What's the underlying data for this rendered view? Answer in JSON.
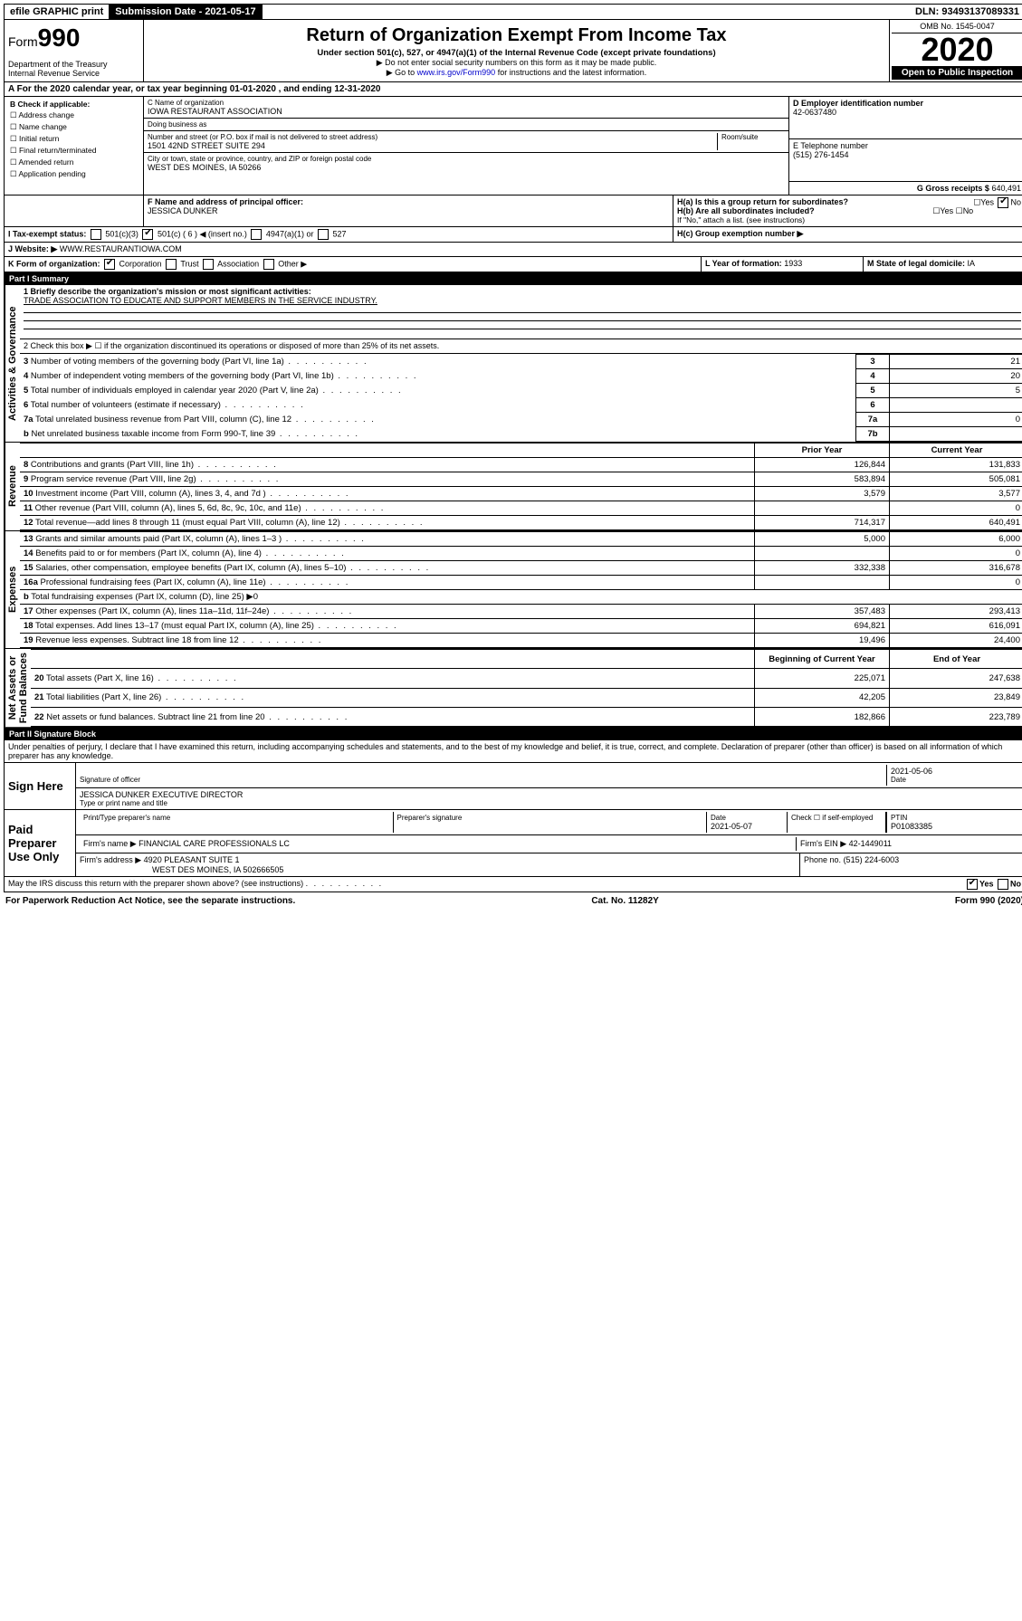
{
  "top": {
    "efile": "efile GRAPHIC print",
    "submission": "Submission Date - 2021-05-17",
    "dln": "DLN: 93493137089331"
  },
  "header": {
    "form_prefix": "Form",
    "form_num": "990",
    "dept": "Department of the Treasury\nInternal Revenue Service",
    "title": "Return of Organization Exempt From Income Tax",
    "sub1": "Under section 501(c), 527, or 4947(a)(1) of the Internal Revenue Code (except private foundations)",
    "sub2": "▶ Do not enter social security numbers on this form as it may be made public.",
    "sub3_pre": "▶ Go to ",
    "sub3_link": "www.irs.gov/Form990",
    "sub3_post": " for instructions and the latest information.",
    "omb": "OMB No. 1545-0047",
    "year": "2020",
    "open": "Open to Public Inspection"
  },
  "A": {
    "text": "A For the 2020 calendar year, or tax year beginning 01-01-2020    , and ending 12-31-2020"
  },
  "B": {
    "label": "B Check if applicable:",
    "items": [
      "Address change",
      "Name change",
      "Initial return",
      "Final return/terminated",
      "Amended return",
      "Application pending"
    ]
  },
  "C": {
    "name_label": "C Name of organization",
    "name": "IOWA RESTAURANT ASSOCIATION",
    "dba_label": "Doing business as",
    "dba": "",
    "addr_label": "Number and street (or P.O. box if mail is not delivered to street address)",
    "room_label": "Room/suite",
    "addr": "1501 42ND STREET SUITE 294",
    "city_label": "City or town, state or province, country, and ZIP or foreign postal code",
    "city": "WEST DES MOINES, IA  50266"
  },
  "D": {
    "label": "D Employer identification number",
    "val": "42-0637480"
  },
  "E": {
    "label": "E Telephone number",
    "val": "(515) 276-1454"
  },
  "G": {
    "label": "G Gross receipts $",
    "val": "640,491"
  },
  "F": {
    "label": "F Name and address of principal officer:",
    "val": "JESSICA DUNKER"
  },
  "H": {
    "a_label": "H(a)  Is this a group return for subordinates?",
    "b_label": "H(b)  Are all subordinates included?",
    "b_note": "If \"No,\" attach a list. (see instructions)",
    "c_label": "H(c)  Group exemption number ▶",
    "yes": "Yes",
    "no": "No"
  },
  "I": {
    "label": "I Tax-exempt status:",
    "c3": "501(c)(3)",
    "c": "501(c) ( 6 ) ◀ (insert no.)",
    "a1": "4947(a)(1) or",
    "s527": "527"
  },
  "J": {
    "label": "J   Website: ▶",
    "val": "WWW.RESTAURANTIOWA.COM"
  },
  "K": {
    "label": "K Form of organization:",
    "opts": [
      "Corporation",
      "Trust",
      "Association",
      "Other ▶"
    ]
  },
  "L": {
    "label": "L Year of formation:",
    "val": "1933"
  },
  "M": {
    "label": "M State of legal domicile:",
    "val": "IA"
  },
  "part1_title": "Part I      Summary",
  "summary": {
    "line1_label": "1  Briefly describe the organization's mission or most significant activities:",
    "line1_val": "TRADE ASSOCIATION TO EDUCATE AND SUPPORT MEMBERS IN THE SERVICE INDUSTRY.",
    "line2": "2   Check this box ▶ ☐  if the organization discontinued its operations or disposed of more than 25% of its net assets.",
    "rows_top": [
      {
        "n": "3",
        "lbl": "Number of voting members of the governing body (Part VI, line 1a)",
        "box": "3",
        "val": "21"
      },
      {
        "n": "4",
        "lbl": "Number of independent voting members of the governing body (Part VI, line 1b)",
        "box": "4",
        "val": "20"
      },
      {
        "n": "5",
        "lbl": "Total number of individuals employed in calendar year 2020 (Part V, line 2a)",
        "box": "5",
        "val": "5"
      },
      {
        "n": "6",
        "lbl": "Total number of volunteers (estimate if necessary)",
        "box": "6",
        "val": ""
      },
      {
        "n": "7a",
        "lbl": "Total unrelated business revenue from Part VIII, column (C), line 12",
        "box": "7a",
        "val": "0"
      },
      {
        "n": "b",
        "lbl": "Net unrelated business taxable income from Form 990-T, line 39",
        "box": "7b",
        "val": ""
      }
    ],
    "prior_hdr": "Prior Year",
    "curr_hdr": "Current Year",
    "revenue": [
      {
        "n": "8",
        "lbl": "Contributions and grants (Part VIII, line 1h)",
        "p": "126,844",
        "c": "131,833"
      },
      {
        "n": "9",
        "lbl": "Program service revenue (Part VIII, line 2g)",
        "p": "583,894",
        "c": "505,081"
      },
      {
        "n": "10",
        "lbl": "Investment income (Part VIII, column (A), lines 3, 4, and 7d )",
        "p": "3,579",
        "c": "3,577"
      },
      {
        "n": "11",
        "lbl": "Other revenue (Part VIII, column (A), lines 5, 6d, 8c, 9c, 10c, and 11e)",
        "p": "",
        "c": "0"
      },
      {
        "n": "12",
        "lbl": "Total revenue—add lines 8 through 11 (must equal Part VIII, column (A), line 12)",
        "p": "714,317",
        "c": "640,491"
      }
    ],
    "expenses": [
      {
        "n": "13",
        "lbl": "Grants and similar amounts paid (Part IX, column (A), lines 1–3 )",
        "p": "5,000",
        "c": "6,000"
      },
      {
        "n": "14",
        "lbl": "Benefits paid to or for members (Part IX, column (A), line 4)",
        "p": "",
        "c": "0"
      },
      {
        "n": "15",
        "lbl": "Salaries, other compensation, employee benefits (Part IX, column (A), lines 5–10)",
        "p": "332,338",
        "c": "316,678"
      },
      {
        "n": "16a",
        "lbl": "Professional fundraising fees (Part IX, column (A), line 11e)",
        "p": "",
        "c": "0"
      },
      {
        "n": "b",
        "lbl": "Total fundraising expenses (Part IX, column (D), line 25) ▶0",
        "p": "—",
        "c": "—"
      },
      {
        "n": "17",
        "lbl": "Other expenses (Part IX, column (A), lines 11a–11d, 11f–24e)",
        "p": "357,483",
        "c": "293,413"
      },
      {
        "n": "18",
        "lbl": "Total expenses. Add lines 13–17 (must equal Part IX, column (A), line 25)",
        "p": "694,821",
        "c": "616,091"
      },
      {
        "n": "19",
        "lbl": "Revenue less expenses. Subtract line 18 from line 12",
        "p": "19,496",
        "c": "24,400"
      }
    ],
    "net_hdr_p": "Beginning of Current Year",
    "net_hdr_c": "End of Year",
    "net": [
      {
        "n": "20",
        "lbl": "Total assets (Part X, line 16)",
        "p": "225,071",
        "c": "247,638"
      },
      {
        "n": "21",
        "lbl": "Total liabilities (Part X, line 26)",
        "p": "42,205",
        "c": "23,849"
      },
      {
        "n": "22",
        "lbl": "Net assets or fund balances. Subtract line 21 from line 20",
        "p": "182,866",
        "c": "223,789"
      }
    ],
    "vlabels": {
      "gov": "Activities & Governance",
      "rev": "Revenue",
      "exp": "Expenses",
      "net": "Net Assets or\nFund Balances"
    }
  },
  "part2_title": "Part II     Signature Block",
  "sig": {
    "jurat": "Under penalties of perjury, I declare that I have examined this return, including accompanying schedules and statements, and to the best of my knowledge and belief, it is true, correct, and complete. Declaration of preparer (other than officer) is based on all information of which preparer has any knowledge.",
    "sign_here": "Sign Here",
    "sig_officer_lbl": "Signature of officer",
    "date1": "2021-05-06",
    "date_lbl": "Date",
    "name_title": "JESSICA DUNKER  EXECUTIVE DIRECTOR",
    "name_title_lbl": "Type or print name and title",
    "paid": "Paid Preparer Use Only",
    "prep_name_lbl": "Print/Type preparer's name",
    "prep_sig_lbl": "Preparer's signature",
    "date2": "2021-05-07",
    "self_emp": "Check ☐ if self-employed",
    "ptin_lbl": "PTIN",
    "ptin": "P01083385",
    "firm_name_lbl": "Firm's name    ▶",
    "firm_name": "FINANCIAL CARE PROFESSIONALS LC",
    "firm_ein_lbl": "Firm's EIN ▶",
    "firm_ein": "42-1449011",
    "firm_addr_lbl": "Firm's address ▶",
    "firm_addr": "4920 PLEASANT SUITE 1",
    "firm_city": "WEST DES MOINES, IA  502666505",
    "phone_lbl": "Phone no.",
    "phone": "(515) 224-6003",
    "discuss": "May the IRS discuss this return with the preparer shown above? (see instructions)"
  },
  "footer": {
    "left": "For Paperwork Reduction Act Notice, see the separate instructions.",
    "mid": "Cat. No. 11282Y",
    "right": "Form 990 (2020)"
  }
}
